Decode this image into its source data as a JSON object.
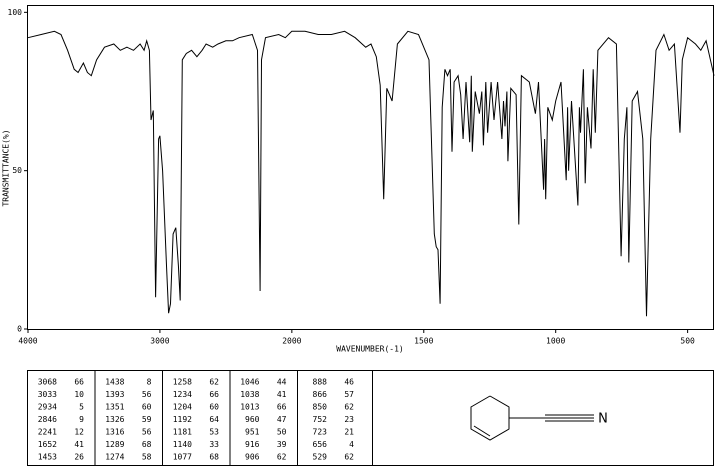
{
  "chart_data": {
    "type": "line",
    "title": null,
    "xlabel": "WAVENUMBER(-1)",
    "ylabel": "TRANSMITTANCE(%)",
    "xlim": [
      4000,
      400
    ],
    "xscale": {
      "break": 2000,
      "factor": 2
    },
    "xticks": [
      4000,
      3000,
      2000,
      1500,
      1000,
      500
    ],
    "ylim": [
      0,
      102
    ],
    "yticks": [
      0,
      50,
      100
    ],
    "grid": false,
    "series": [
      {
        "name": "spectrum",
        "color": "#000000",
        "x": [
          4000,
          3900,
          3800,
          3750,
          3700,
          3650,
          3620,
          3580,
          3550,
          3520,
          3480,
          3420,
          3350,
          3300,
          3250,
          3200,
          3150,
          3120,
          3100,
          3080,
          3068,
          3050,
          3033,
          3010,
          3000,
          2980,
          2950,
          2934,
          2920,
          2900,
          2880,
          2860,
          2846,
          2830,
          2800,
          2760,
          2720,
          2680,
          2650,
          2600,
          2560,
          2500,
          2450,
          2400,
          2300,
          2260,
          2241,
          2230,
          2200,
          2100,
          2050,
          2000,
          1950,
          1900,
          1850,
          1800,
          1760,
          1720,
          1700,
          1680,
          1665,
          1652,
          1640,
          1620,
          1600,
          1560,
          1520,
          1480,
          1460,
          1453,
          1446,
          1438,
          1430,
          1420,
          1410,
          1400,
          1393,
          1385,
          1370,
          1360,
          1351,
          1340,
          1326,
          1320,
          1316,
          1305,
          1289,
          1280,
          1274,
          1265,
          1258,
          1245,
          1234,
          1220,
          1204,
          1198,
          1192,
          1185,
          1181,
          1170,
          1150,
          1140,
          1130,
          1100,
          1077,
          1065,
          1046,
          1042,
          1038,
          1030,
          1013,
          1000,
          980,
          960,
          955,
          951,
          940,
          916,
          910,
          906,
          895,
          888,
          880,
          866,
          858,
          850,
          840,
          800,
          770,
          752,
          740,
          730,
          723,
          710,
          690,
          670,
          656,
          640,
          620,
          590,
          570,
          550,
          529,
          520,
          500,
          470,
          450,
          430,
          400
        ],
        "values": [
          92,
          93,
          94,
          93,
          88,
          82,
          81,
          84,
          81,
          80,
          85,
          89,
          90,
          88,
          89,
          88,
          90,
          88,
          91,
          88,
          66,
          69,
          10,
          60,
          61,
          50,
          20,
          5,
          8,
          30,
          32,
          20,
          9,
          85,
          87,
          88,
          86,
          88,
          90,
          89,
          90,
          91,
          91,
          92,
          93,
          88,
          12,
          85,
          92,
          93,
          92,
          94,
          94,
          93,
          93,
          94,
          92,
          89,
          90,
          86,
          77,
          41,
          76,
          72,
          90,
          94,
          93,
          85,
          30,
          26,
          25,
          8,
          70,
          82,
          80,
          82,
          56,
          78,
          80,
          74,
          60,
          78,
          59,
          80,
          56,
          75,
          68,
          75,
          58,
          78,
          62,
          78,
          66,
          78,
          60,
          72,
          64,
          75,
          53,
          76,
          74,
          33,
          80,
          78,
          68,
          78,
          44,
          60,
          41,
          70,
          66,
          72,
          78,
          47,
          70,
          50,
          72,
          39,
          70,
          62,
          82,
          46,
          70,
          57,
          82,
          62,
          88,
          92,
          90,
          23,
          60,
          70,
          21,
          72,
          75,
          60,
          4,
          60,
          88,
          93,
          88,
          90,
          62,
          85,
          92,
          90,
          88,
          91,
          80
        ]
      }
    ]
  },
  "peak_table": [
    [
      [
        3068,
        66
      ],
      [
        3033,
        10
      ],
      [
        2934,
        5
      ],
      [
        2846,
        9
      ],
      [
        2241,
        12
      ],
      [
        1652,
        41
      ],
      [
        1453,
        26
      ]
    ],
    [
      [
        1438,
        8
      ],
      [
        1393,
        56
      ],
      [
        1351,
        60
      ],
      [
        1326,
        59
      ],
      [
        1316,
        56
      ],
      [
        1289,
        68
      ],
      [
        1274,
        58
      ]
    ],
    [
      [
        1258,
        62
      ],
      [
        1234,
        66
      ],
      [
        1204,
        60
      ],
      [
        1192,
        64
      ],
      [
        1181,
        53
      ],
      [
        1140,
        33
      ],
      [
        1077,
        68
      ]
    ],
    [
      [
        1046,
        44
      ],
      [
        1038,
        41
      ],
      [
        1013,
        66
      ],
      [
        960,
        47
      ],
      [
        951,
        50
      ],
      [
        916,
        39
      ],
      [
        906,
        62
      ]
    ],
    [
      [
        888,
        46
      ],
      [
        866,
        57
      ],
      [
        850,
        62
      ],
      [
        752,
        23
      ],
      [
        723,
        21
      ],
      [
        656,
        4
      ],
      [
        529,
        62
      ]
    ]
  ],
  "structure": {
    "atom": "N"
  }
}
